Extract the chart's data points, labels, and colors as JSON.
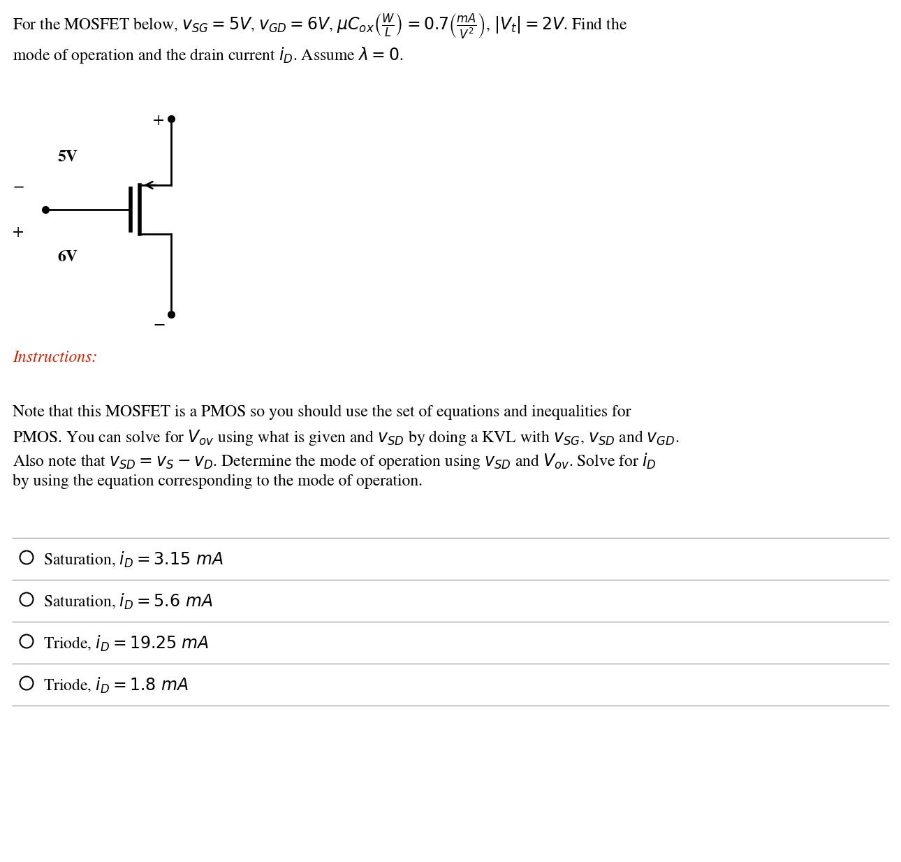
{
  "title_line1": "For the MOSFET below, $v_{SG} = 5V$, $v_{GD} = 6V$, $\\mu C_{ox} \\left(\\frac{W}{L}\\right) = 0.7 \\left(\\frac{mA}{V^2}\\right)$, $|V_t| = 2V$. Find the",
  "title_line2": "mode of operation and the drain current $i_D$. Assume $\\lambda = 0$.",
  "instructions_label": "Instructions:",
  "instructions_color": "#cc2200",
  "note_line1": "Note that this MOSFET is a PMOS so you should use the set of equations and inequalities for",
  "note_line2": "PMOS. You can solve for $V_{ov}$ using what is given and $v_{SD}$ by doing a KVL with $v_{SG}$, $v_{SD}$ and $v_{GD}$.",
  "note_line3": "Also note that $v_{SD} = v_S - v_D$. Determine the mode of operation using $v_{SD}$ and $V_{ov}$. Solve for $i_D$",
  "note_line4": "by using the equation corresponding to the mode of operation.",
  "choices": [
    "Saturation, $i_D = 3.15\\ mA$",
    "Saturation, $i_D = 5.6\\ mA$",
    "Triode, $i_D = 19.25\\ mA$",
    "Triode, $i_D = 1.8\\ mA$"
  ],
  "v5_label": "5V",
  "v6_label": "6V",
  "plus_top": "+",
  "minus_left": "−",
  "plus_left": "+",
  "minus_bottom": "−",
  "bg_color": "#ffffff",
  "text_color": "#000000",
  "line_color": "#aaaaaa",
  "font_size_title": 17,
  "font_size_body": 17,
  "font_size_circuit": 17
}
